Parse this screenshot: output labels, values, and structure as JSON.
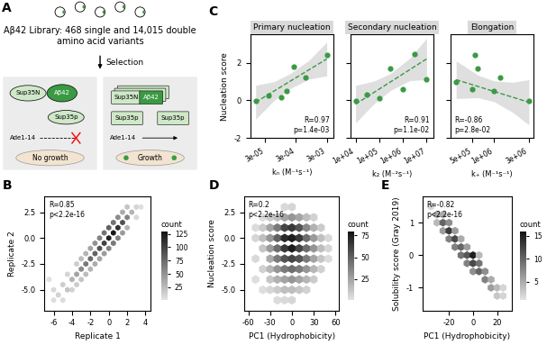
{
  "chart_data": [
    {
      "type": "diagram",
      "panel": "A",
      "title": "Aβ42 Library: 468 single and 14,015 double amino acid variants",
      "step": "Selection",
      "left_labels": [
        "Sup35N",
        "Aβ42",
        "Sup35p",
        "Ade1-14"
      ],
      "left_outcome": "No growth",
      "right_labels": [
        "Sup35N",
        "Aβ42",
        "Sup35p",
        "Sup35p",
        "Ade1-14"
      ],
      "right_outcome": "Growth"
    },
    {
      "type": "hexbin",
      "panel": "B",
      "xlabel": "Replicate 1",
      "ylabel": "Replicate 2",
      "annotation": "R=0.85\np<2.2e-16",
      "xlim": [
        -7,
        4.5
      ],
      "ylim": [
        -7,
        4
      ],
      "xticks": [
        -6,
        -4,
        -2,
        0,
        2,
        4
      ],
      "yticks": [
        -5.0,
        -2.5,
        0.0,
        2.5
      ],
      "cells": [
        [
          -6,
          -6,
          5
        ],
        [
          -6,
          -5,
          8
        ],
        [
          -5.5,
          -5.5,
          12
        ],
        [
          -5,
          -6,
          6
        ],
        [
          -5,
          -4.5,
          15
        ],
        [
          -4.5,
          -5,
          20
        ],
        [
          -4.5,
          -3.5,
          10
        ],
        [
          -4,
          -4,
          30
        ],
        [
          -4,
          -5,
          12
        ],
        [
          -3.5,
          -3.5,
          40
        ],
        [
          -3.5,
          -4.5,
          15
        ],
        [
          -3.5,
          -2.5,
          15
        ],
        [
          -3,
          -3,
          55
        ],
        [
          -3,
          -2,
          25
        ],
        [
          -3,
          -4,
          20
        ],
        [
          -2.5,
          -2.5,
          65
        ],
        [
          -2.5,
          -1.5,
          30
        ],
        [
          -2.5,
          -3.5,
          25
        ],
        [
          -2,
          -2,
          75
        ],
        [
          -2,
          -1,
          40
        ],
        [
          -2,
          -3,
          30
        ],
        [
          -1.5,
          -1.5,
          80
        ],
        [
          -1.5,
          -0.5,
          50
        ],
        [
          -1.5,
          -2.5,
          35
        ],
        [
          -1,
          -1,
          90
        ],
        [
          -1,
          0,
          60
        ],
        [
          -1,
          -2,
          40
        ],
        [
          -0.5,
          -0.5,
          100
        ],
        [
          -0.5,
          0.5,
          70
        ],
        [
          -0.5,
          -1.5,
          45
        ],
        [
          0,
          0,
          120
        ],
        [
          0,
          1,
          80
        ],
        [
          0,
          -1,
          60
        ],
        [
          0.5,
          0.5,
          125
        ],
        [
          0.5,
          1.5,
          70
        ],
        [
          0.5,
          -0.5,
          65
        ],
        [
          1,
          1,
          110
        ],
        [
          1,
          2,
          55
        ],
        [
          1,
          0,
          60
        ],
        [
          1.5,
          1.5,
          90
        ],
        [
          1.5,
          2.5,
          35
        ],
        [
          1.5,
          0.5,
          45
        ],
        [
          2,
          2,
          60
        ],
        [
          2,
          1,
          30
        ],
        [
          2,
          3,
          20
        ],
        [
          2.5,
          2.5,
          30
        ],
        [
          3,
          3,
          10
        ],
        [
          3,
          2,
          8
        ],
        [
          -6.5,
          -4,
          3
        ],
        [
          3.5,
          3,
          4
        ]
      ],
      "colorbar_title": "count",
      "colorbar_range": [
        1,
        130
      ],
      "colorbar_ticks": [
        25,
        50,
        75,
        100,
        125
      ]
    },
    {
      "type": "scatter",
      "panel": "C",
      "title": "Primary nucleation",
      "xlabel": "kₙ (M⁻¹s⁻¹)",
      "ylabel": "Nucleation score",
      "log": "x",
      "color": "#3a9a44",
      "annotation": "R=0.97\np=1.4e-03",
      "x": [
        1.5e-05,
        4e-05,
        0.0001,
        0.00015,
        0.00025,
        0.0006,
        0.003
      ],
      "values": [
        -0.05,
        0.25,
        0.15,
        0.5,
        1.8,
        1.2,
        2.4
      ],
      "fit_x": [
        1.5e-05,
        0.003
      ],
      "fit_y": [
        -0.1,
        2.2
      ],
      "band_x": [
        1.5e-05,
        6e-05,
        0.0002,
        0.0008,
        0.003
      ],
      "band_lower": [
        -1.0,
        0.0,
        0.63,
        1.13,
        1.3
      ],
      "band_upper": [
        0.8,
        1.0,
        1.43,
        2.13,
        3.1
      ],
      "xlim": [
        1e-05,
        0.005
      ],
      "ylim": [
        -2,
        3.5
      ],
      "xticks": [
        {
          "value": 3e-05,
          "label": "3e-05"
        },
        {
          "value": 0.0003,
          "label": "3e-04"
        },
        {
          "value": 0.003,
          "label": "3e-03"
        }
      ],
      "yticks": [
        -2,
        0,
        2
      ]
    },
    {
      "type": "scatter",
      "title": "Secondary nucleation",
      "xlabel": "k₂ (M⁻²s⁻¹)",
      "log": "x",
      "color": "#3a9a44",
      "annotation": "R=0.91\np=1.1e-02",
      "tick_labels": "x",
      "x": [
        10000,
        30000,
        100000,
        300000,
        1000000,
        3000000,
        10000000
      ],
      "values": [
        -0.05,
        0.3,
        0.1,
        1.7,
        0.6,
        2.45,
        1.1
      ],
      "fit_x": [
        10000,
        10000000
      ],
      "fit_y": [
        -0.2,
        2.2
      ],
      "band_x": [
        10000,
        60000,
        300000,
        2000000,
        10000000
      ],
      "band_lower": [
        -1.2,
        -0.18,
        0.53,
        1.05,
        1.1
      ],
      "band_upper": [
        0.8,
        1.02,
        1.43,
        2.25,
        3.3
      ],
      "xlim": [
        6000,
        20000000
      ],
      "ylim": [
        -2,
        3.5
      ],
      "xticks": [
        {
          "value": 10000,
          "label": "1e+04"
        },
        {
          "value": 100000,
          "label": "1e+05"
        },
        {
          "value": 1000000,
          "label": "1e+06"
        },
        {
          "value": 10000000,
          "label": "1e+07"
        }
      ],
      "yticks": [
        -2,
        0,
        2
      ]
    },
    {
      "type": "scatter",
      "title": "Elongation",
      "xlabel": "k₊ (M⁻¹s⁻¹)",
      "log": "x",
      "color": "#3a9a44",
      "annotation": "R=-0.86\np=2.8e-02",
      "tick_labels": "x",
      "x": [
        300000,
        500000,
        550000,
        600000,
        1000000,
        1200000,
        3000000
      ],
      "values": [
        1.0,
        0.6,
        2.4,
        1.7,
        0.5,
        1.2,
        -0.05
      ],
      "fit_x": [
        300000,
        3000000
      ],
      "fit_y": [
        1.1,
        -0.1
      ],
      "band_x": [
        300000,
        600000,
        1000000,
        1800000,
        3000000
      ],
      "band_lower": [
        0.1,
        0.14,
        -0.07,
        -0.64,
        -1.3
      ],
      "band_upper": [
        2.1,
        1.34,
        1.03,
        0.96,
        1.1
      ],
      "xlim": [
        250000,
        3500000
      ],
      "ylim": [
        -2,
        3.5
      ],
      "xticks": [
        {
          "value": 500000,
          "label": "5e+05"
        },
        {
          "value": 1000000,
          "label": "1e+06"
        },
        {
          "value": 3000000,
          "label": "3e+06"
        }
      ],
      "yticks": [
        -2,
        0,
        2
      ]
    },
    {
      "type": "hexbin",
      "panel": "D",
      "xlabel": "PC1 (Hydrophobicity)",
      "ylabel": "Nucleation score",
      "annotation": "R=0.2\np<2.2e-16",
      "xlim": [
        -65,
        65
      ],
      "ylim": [
        -7,
        4
      ],
      "xticks": [
        -60,
        -30,
        0,
        30,
        60
      ],
      "yticks": [
        -5.0,
        -2.5,
        0.0,
        2.5
      ],
      "cells": [
        [
          -50,
          -4,
          3
        ],
        [
          -50,
          -2,
          5
        ],
        [
          -50,
          0,
          6
        ],
        [
          -50,
          1,
          4
        ],
        [
          -40,
          -5,
          3
        ],
        [
          -40,
          -3,
          8
        ],
        [
          -40,
          -1,
          12
        ],
        [
          -40,
          0,
          15
        ],
        [
          -40,
          1,
          10
        ],
        [
          -40,
          2,
          4
        ],
        [
          -30,
          -5,
          6
        ],
        [
          -30,
          -4,
          12
        ],
        [
          -30,
          -3,
          18
        ],
        [
          -30,
          -2,
          22
        ],
        [
          -30,
          -1,
          28
        ],
        [
          -30,
          0,
          30
        ],
        [
          -30,
          1,
          25
        ],
        [
          -30,
          2,
          10
        ],
        [
          -20,
          -6,
          4
        ],
        [
          -20,
          -5,
          10
        ],
        [
          -20,
          -4,
          20
        ],
        [
          -20,
          -3,
          30
        ],
        [
          -20,
          -2,
          40
        ],
        [
          -20,
          -1,
          45
        ],
        [
          -20,
          0,
          50
        ],
        [
          -20,
          1,
          40
        ],
        [
          -20,
          2,
          15
        ],
        [
          -10,
          -6,
          5
        ],
        [
          -10,
          -5,
          15
        ],
        [
          -10,
          -4,
          25
        ],
        [
          -10,
          -3,
          40
        ],
        [
          -10,
          -2,
          55
        ],
        [
          -10,
          -1,
          65
        ],
        [
          -10,
          0,
          70
        ],
        [
          -10,
          1,
          60
        ],
        [
          -10,
          2,
          25
        ],
        [
          -10,
          3,
          5
        ],
        [
          0,
          -6,
          6
        ],
        [
          0,
          -5,
          15
        ],
        [
          0,
          -4,
          30
        ],
        [
          0,
          -3,
          45
        ],
        [
          0,
          -2,
          60
        ],
        [
          0,
          -1,
          75
        ],
        [
          0,
          0,
          75
        ],
        [
          0,
          1,
          65
        ],
        [
          0,
          2,
          30
        ],
        [
          0,
          3,
          6
        ],
        [
          10,
          -5,
          12
        ],
        [
          10,
          -4,
          25
        ],
        [
          10,
          -3,
          40
        ],
        [
          10,
          -2,
          55
        ],
        [
          10,
          -1,
          60
        ],
        [
          10,
          0,
          65
        ],
        [
          10,
          1,
          55
        ],
        [
          10,
          2,
          25
        ],
        [
          20,
          -5,
          8
        ],
        [
          20,
          -4,
          18
        ],
        [
          20,
          -3,
          30
        ],
        [
          20,
          -2,
          40
        ],
        [
          20,
          -1,
          45
        ],
        [
          20,
          0,
          45
        ],
        [
          20,
          1,
          35
        ],
        [
          20,
          2,
          15
        ],
        [
          30,
          -4,
          10
        ],
        [
          30,
          -3,
          18
        ],
        [
          30,
          -2,
          25
        ],
        [
          30,
          -1,
          30
        ],
        [
          30,
          0,
          28
        ],
        [
          30,
          1,
          20
        ],
        [
          30,
          2,
          8
        ],
        [
          40,
          -3,
          8
        ],
        [
          40,
          -2,
          12
        ],
        [
          40,
          -1,
          15
        ],
        [
          40,
          0,
          14
        ],
        [
          40,
          1,
          10
        ],
        [
          50,
          -2,
          4
        ],
        [
          50,
          -1,
          6
        ],
        [
          50,
          0,
          5
        ]
      ],
      "colorbar_title": "count",
      "colorbar_range": [
        1,
        80
      ],
      "colorbar_ticks": [
        25,
        50,
        75
      ]
    },
    {
      "type": "hexbin",
      "panel": "E",
      "xlabel": "PC1 (Hydrophobicity)",
      "ylabel": "Solubility score (Gray 2019)",
      "annotation": "R=-0.82\np<2.2e-16",
      "xlim": [
        -42,
        32
      ],
      "ylim": [
        -1.7,
        1.8
      ],
      "xticks": [
        -20,
        0,
        20
      ],
      "yticks": [
        -1,
        0,
        1
      ],
      "cells": [
        [
          -35,
          1.5,
          2
        ],
        [
          -30,
          1.25,
          5
        ],
        [
          -30,
          1.0,
          4
        ],
        [
          -25,
          1.0,
          10
        ],
        [
          -25,
          0.75,
          6
        ],
        [
          -25,
          1.25,
          5
        ],
        [
          -20,
          0.75,
          13
        ],
        [
          -20,
          0.5,
          8
        ],
        [
          -20,
          1.0,
          7
        ],
        [
          -15,
          0.5,
          12
        ],
        [
          -15,
          0.25,
          8
        ],
        [
          -15,
          0.75,
          6
        ],
        [
          -10,
          0.25,
          10
        ],
        [
          -10,
          0.0,
          9
        ],
        [
          -10,
          0.5,
          5
        ],
        [
          -5,
          0.0,
          11
        ],
        [
          -5,
          -0.25,
          8
        ],
        [
          -5,
          0.25,
          6
        ],
        [
          0,
          0.0,
          15
        ],
        [
          0,
          -0.25,
          12
        ],
        [
          0,
          -0.5,
          7
        ],
        [
          5,
          -0.25,
          9
        ],
        [
          5,
          -0.5,
          10
        ],
        [
          5,
          0.0,
          4
        ],
        [
          10,
          -0.5,
          7
        ],
        [
          10,
          -0.75,
          8
        ],
        [
          15,
          -0.75,
          5
        ],
        [
          15,
          -1.0,
          6
        ],
        [
          20,
          -1.0,
          4
        ],
        [
          20,
          -1.25,
          3
        ],
        [
          25,
          -1.25,
          2
        ],
        [
          25,
          -1.0,
          2
        ]
      ],
      "colorbar_title": "count",
      "colorbar_range": [
        1,
        16
      ],
      "colorbar_ticks": [
        5,
        10,
        15
      ]
    }
  ]
}
